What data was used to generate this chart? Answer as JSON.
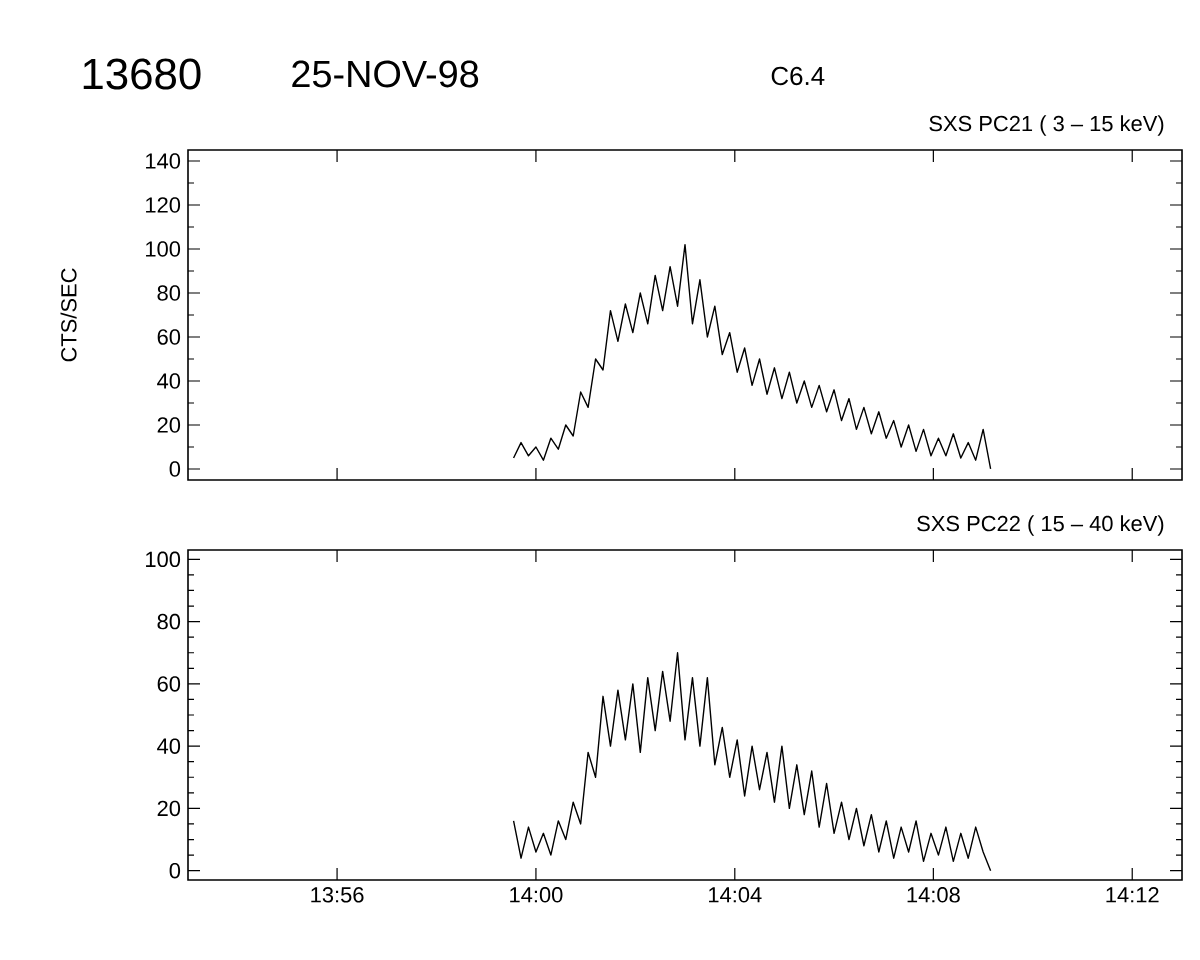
{
  "chart_data": [
    {
      "type": "line",
      "title": "SXS PC21  (  3 – 15 keV)",
      "ylabel": "CTS/SEC",
      "annotations": [
        "13680",
        "25-NOV-98",
        "C6.4"
      ],
      "tick_labels": "y",
      "xlim": [
        13.8833,
        14.2167
      ],
      "ylim": [
        -5,
        145
      ],
      "xticks": [
        {
          "value": 13.9333,
          "label": null
        },
        {
          "value": 14.0,
          "label": null
        },
        {
          "value": 14.0667,
          "label": null
        },
        {
          "value": 14.1333,
          "label": null
        },
        {
          "value": 14.2,
          "label": null
        }
      ],
      "yticks": [
        0,
        20,
        40,
        60,
        80,
        100,
        120,
        140
      ],
      "x": [
        13.9925,
        13.995,
        13.9975,
        14,
        14.0025,
        14.005,
        14.0075,
        14.01,
        14.0125,
        14.015,
        14.0175,
        14.02,
        14.0225,
        14.025,
        14.0275,
        14.03,
        14.0325,
        14.035,
        14.0375,
        14.04,
        14.0425,
        14.045,
        14.0475,
        14.05,
        14.0525,
        14.055,
        14.0575,
        14.06,
        14.0625,
        14.065,
        14.0675,
        14.07,
        14.0725,
        14.075,
        14.0775,
        14.08,
        14.0825,
        14.085,
        14.0875,
        14.09,
        14.0925,
        14.095,
        14.0975,
        14.1,
        14.1025,
        14.105,
        14.1075,
        14.11,
        14.1125,
        14.115,
        14.1175,
        14.12,
        14.1225,
        14.125,
        14.1275,
        14.13,
        14.1325,
        14.135,
        14.1375,
        14.14,
        14.1425,
        14.145,
        14.1475,
        14.15,
        14.1525
      ],
      "series": [
        {
          "color": "#000000",
          "values": [
            5,
            12,
            6,
            10,
            4,
            14,
            9,
            20,
            15,
            35,
            28,
            50,
            45,
            72,
            58,
            75,
            62,
            80,
            66,
            88,
            72,
            92,
            74,
            102,
            66,
            86,
            60,
            74,
            52,
            62,
            44,
            55,
            38,
            50,
            34,
            46,
            32,
            44,
            30,
            40,
            28,
            38,
            26,
            36,
            22,
            32,
            18,
            28,
            16,
            26,
            14,
            22,
            10,
            20,
            8,
            18,
            6,
            14,
            6,
            16,
            5,
            12,
            4,
            18,
            0
          ]
        }
      ]
    },
    {
      "type": "line",
      "title": "SXS PC22  ( 15 – 40 keV)",
      "xlim": [
        13.8833,
        14.2167
      ],
      "ylim": [
        -3,
        103
      ],
      "xticks": [
        {
          "value": 13.9333,
          "label": "13:56"
        },
        {
          "value": 14.0,
          "label": "14:00"
        },
        {
          "value": 14.0667,
          "label": "14:04"
        },
        {
          "value": 14.1333,
          "label": "14:08"
        },
        {
          "value": 14.2,
          "label": "14:12"
        }
      ],
      "yticks": [
        0,
        20,
        40,
        60,
        80,
        100
      ],
      "x": [
        13.9925,
        13.995,
        13.9975,
        14,
        14.0025,
        14.005,
        14.0075,
        14.01,
        14.0125,
        14.015,
        14.0175,
        14.02,
        14.0225,
        14.025,
        14.0275,
        14.03,
        14.0325,
        14.035,
        14.0375,
        14.04,
        14.0425,
        14.045,
        14.0475,
        14.05,
        14.0525,
        14.055,
        14.0575,
        14.06,
        14.0625,
        14.065,
        14.0675,
        14.07,
        14.0725,
        14.075,
        14.0775,
        14.08,
        14.0825,
        14.085,
        14.0875,
        14.09,
        14.0925,
        14.095,
        14.0975,
        14.1,
        14.1025,
        14.105,
        14.1075,
        14.11,
        14.1125,
        14.115,
        14.1175,
        14.12,
        14.1225,
        14.125,
        14.1275,
        14.13,
        14.1325,
        14.135,
        14.1375,
        14.14,
        14.1425,
        14.145,
        14.1475,
        14.15,
        14.1525
      ],
      "series": [
        {
          "color": "#000000",
          "values": [
            16,
            4,
            14,
            6,
            12,
            5,
            16,
            10,
            22,
            15,
            38,
            30,
            56,
            40,
            58,
            42,
            60,
            38,
            62,
            45,
            64,
            48,
            70,
            42,
            62,
            40,
            62,
            34,
            46,
            30,
            42,
            24,
            40,
            26,
            38,
            22,
            40,
            20,
            34,
            18,
            32,
            14,
            28,
            12,
            22,
            10,
            20,
            8,
            18,
            6,
            16,
            4,
            14,
            6,
            16,
            3,
            12,
            5,
            14,
            3,
            12,
            4,
            14,
            6,
            0
          ]
        }
      ]
    }
  ]
}
